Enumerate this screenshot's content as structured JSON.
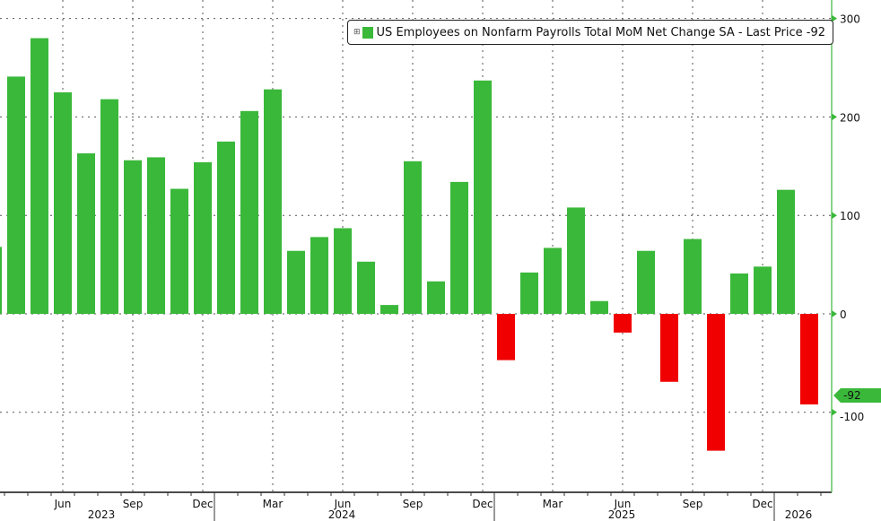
{
  "chart_data": {
    "type": "bar",
    "title": "",
    "legend": {
      "label": "US Employees on Nonfarm Payrolls Total MoM Net Change SA - Last Price -92",
      "placement": "top-right"
    },
    "last_price_label": "-92",
    "categories": [
      "Mar 2023",
      "Apr 2023",
      "May 2023",
      "Jun 2023",
      "Jul 2023",
      "Aug 2023",
      "Sep 2023",
      "Oct 2023",
      "Nov 2023",
      "Dec 2023",
      "Jan 2024",
      "Feb 2024",
      "Mar 2024",
      "Apr 2024",
      "May 2024",
      "Jun 2024",
      "Jul 2024",
      "Aug 2024",
      "Sep 2024",
      "Oct 2024",
      "Nov 2024",
      "Dec 2024",
      "Jan 2025",
      "Feb 2025",
      "Mar 2025",
      "Apr 2025",
      "May 2025",
      "Jun 2025",
      "Jul 2025",
      "Aug 2025",
      "Sep 2025",
      "Oct 2025",
      "Nov 2025",
      "Dec 2025",
      "Jan 2026",
      "Feb 2026"
    ],
    "values": [
      68,
      241,
      280,
      225,
      163,
      218,
      156,
      159,
      127,
      154,
      175,
      206,
      228,
      64,
      78,
      87,
      53,
      9,
      155,
      33,
      134,
      237,
      -47,
      42,
      67,
      108,
      13,
      -19,
      64,
      -69,
      76,
      -139,
      41,
      48,
      126,
      -92
    ],
    "ylim": [
      -180,
      310
    ],
    "y_ticks": [
      "300",
      "200",
      "100",
      "0",
      "-100"
    ],
    "x_month_labels": [
      "Jun",
      "Sep",
      "Dec",
      "Mar",
      "Jun",
      "Sep",
      "Dec",
      "Mar",
      "Jun",
      "Sep",
      "Dec"
    ],
    "x_year_labels": [
      "2023",
      "2024",
      "2025",
      "2026"
    ],
    "grid": true,
    "colors": {
      "positive": "#3ab83a",
      "negative": "#f00000",
      "axis": "#3ab83a"
    }
  }
}
